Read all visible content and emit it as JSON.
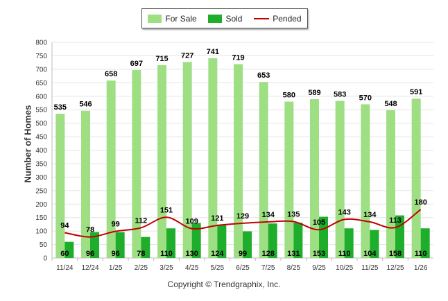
{
  "chart_data": {
    "type": "bar",
    "title": "",
    "xlabel": "",
    "ylabel": "Number of Homes",
    "ylim": [
      0,
      800
    ],
    "yticks": [
      0,
      50,
      100,
      150,
      200,
      250,
      300,
      350,
      400,
      450,
      500,
      550,
      600,
      650,
      700,
      750,
      800
    ],
    "categories": [
      "11/24",
      "12/24",
      "1/25",
      "2/25",
      "3/25",
      "4/25",
      "5/25",
      "6/25",
      "7/25",
      "8/25",
      "9/25",
      "10/25",
      "11/25",
      "12/25",
      "1/26"
    ],
    "series": [
      {
        "name": "For Sale",
        "type": "bar",
        "color": "#9fdf84",
        "values": [
          535,
          546,
          658,
          697,
          715,
          727,
          741,
          719,
          653,
          580,
          589,
          583,
          570,
          548,
          591
        ]
      },
      {
        "name": "Sold",
        "type": "bar",
        "color": "#1fad2c",
        "values": [
          60,
          96,
          96,
          78,
          110,
          130,
          124,
          99,
          128,
          131,
          153,
          110,
          104,
          158,
          110
        ]
      },
      {
        "name": "Pended",
        "type": "line",
        "color": "#c00000",
        "values": [
          94,
          78,
          99,
          112,
          151,
          109,
          121,
          129,
          134,
          135,
          105,
          143,
          134,
          113,
          180
        ]
      }
    ],
    "legend": "top-center"
  },
  "footer": {
    "copyright": "Copyright © Trendgraphix, Inc."
  }
}
